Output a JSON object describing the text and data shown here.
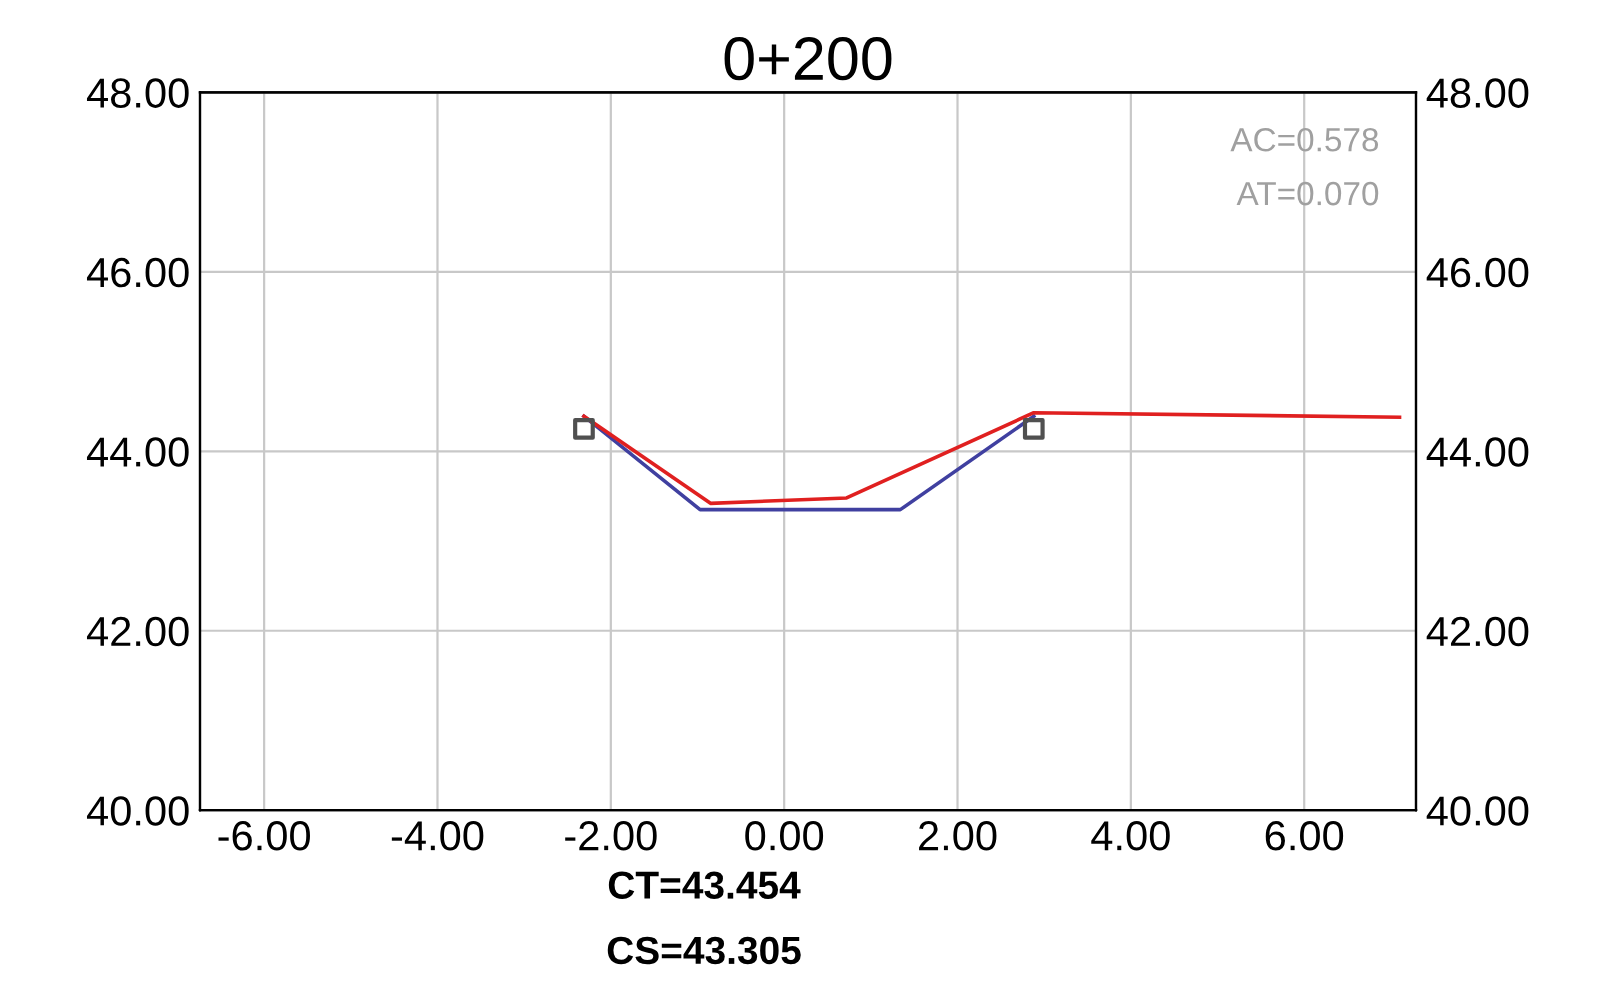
{
  "chart_data": {
    "type": "line",
    "title": "0+200",
    "xlim": [
      -6.74,
      7.29
    ],
    "xticks": [
      {
        "value": -6,
        "label": "-6.00"
      },
      {
        "value": -4,
        "label": "-4.00"
      },
      {
        "value": -2,
        "label": "-2.00"
      },
      {
        "value": 0,
        "label": "0.00"
      },
      {
        "value": 2,
        "label": "2.00"
      },
      {
        "value": 4,
        "label": "4.00"
      },
      {
        "value": 6,
        "label": "6.00"
      }
    ],
    "ylim": [
      40,
      48
    ],
    "yticks": [
      {
        "value": 40,
        "label": "40.00"
      },
      {
        "value": 42,
        "label": "42.00"
      },
      {
        "value": 44,
        "label": "44.00"
      },
      {
        "value": 46,
        "label": "46.00"
      },
      {
        "value": 48,
        "label": "48.00"
      }
    ],
    "y2lim": [
      40,
      48
    ],
    "y2ticks": [
      {
        "value": 40,
        "label": "40.00"
      },
      {
        "value": 42,
        "label": "42.00"
      },
      {
        "value": 44,
        "label": "44.00"
      },
      {
        "value": 46,
        "label": "46.00"
      },
      {
        "value": 48,
        "label": "48.00"
      }
    ],
    "grid": true,
    "series": [
      {
        "color": "#4040a0",
        "x": [
          -2.31,
          -0.97,
          1.34,
          2.88
        ],
        "values": [
          44.39,
          43.35,
          43.35,
          44.39
        ]
      },
      {
        "color": "#e02020",
        "x": [
          -2.31,
          -0.85,
          0.72,
          2.88,
          7.1
        ],
        "values": [
          44.39,
          43.42,
          43.48,
          44.43,
          44.38
        ]
      },
      {
        "type": "scatter",
        "marker": "square",
        "color": "#505050",
        "x": [
          -2.31,
          2.88
        ],
        "values": [
          44.25,
          44.25
        ]
      }
    ],
    "annotations": [
      "AC=0.578",
      "AT=0.070",
      "CT=43.454",
      "CS=43.305"
    ]
  }
}
